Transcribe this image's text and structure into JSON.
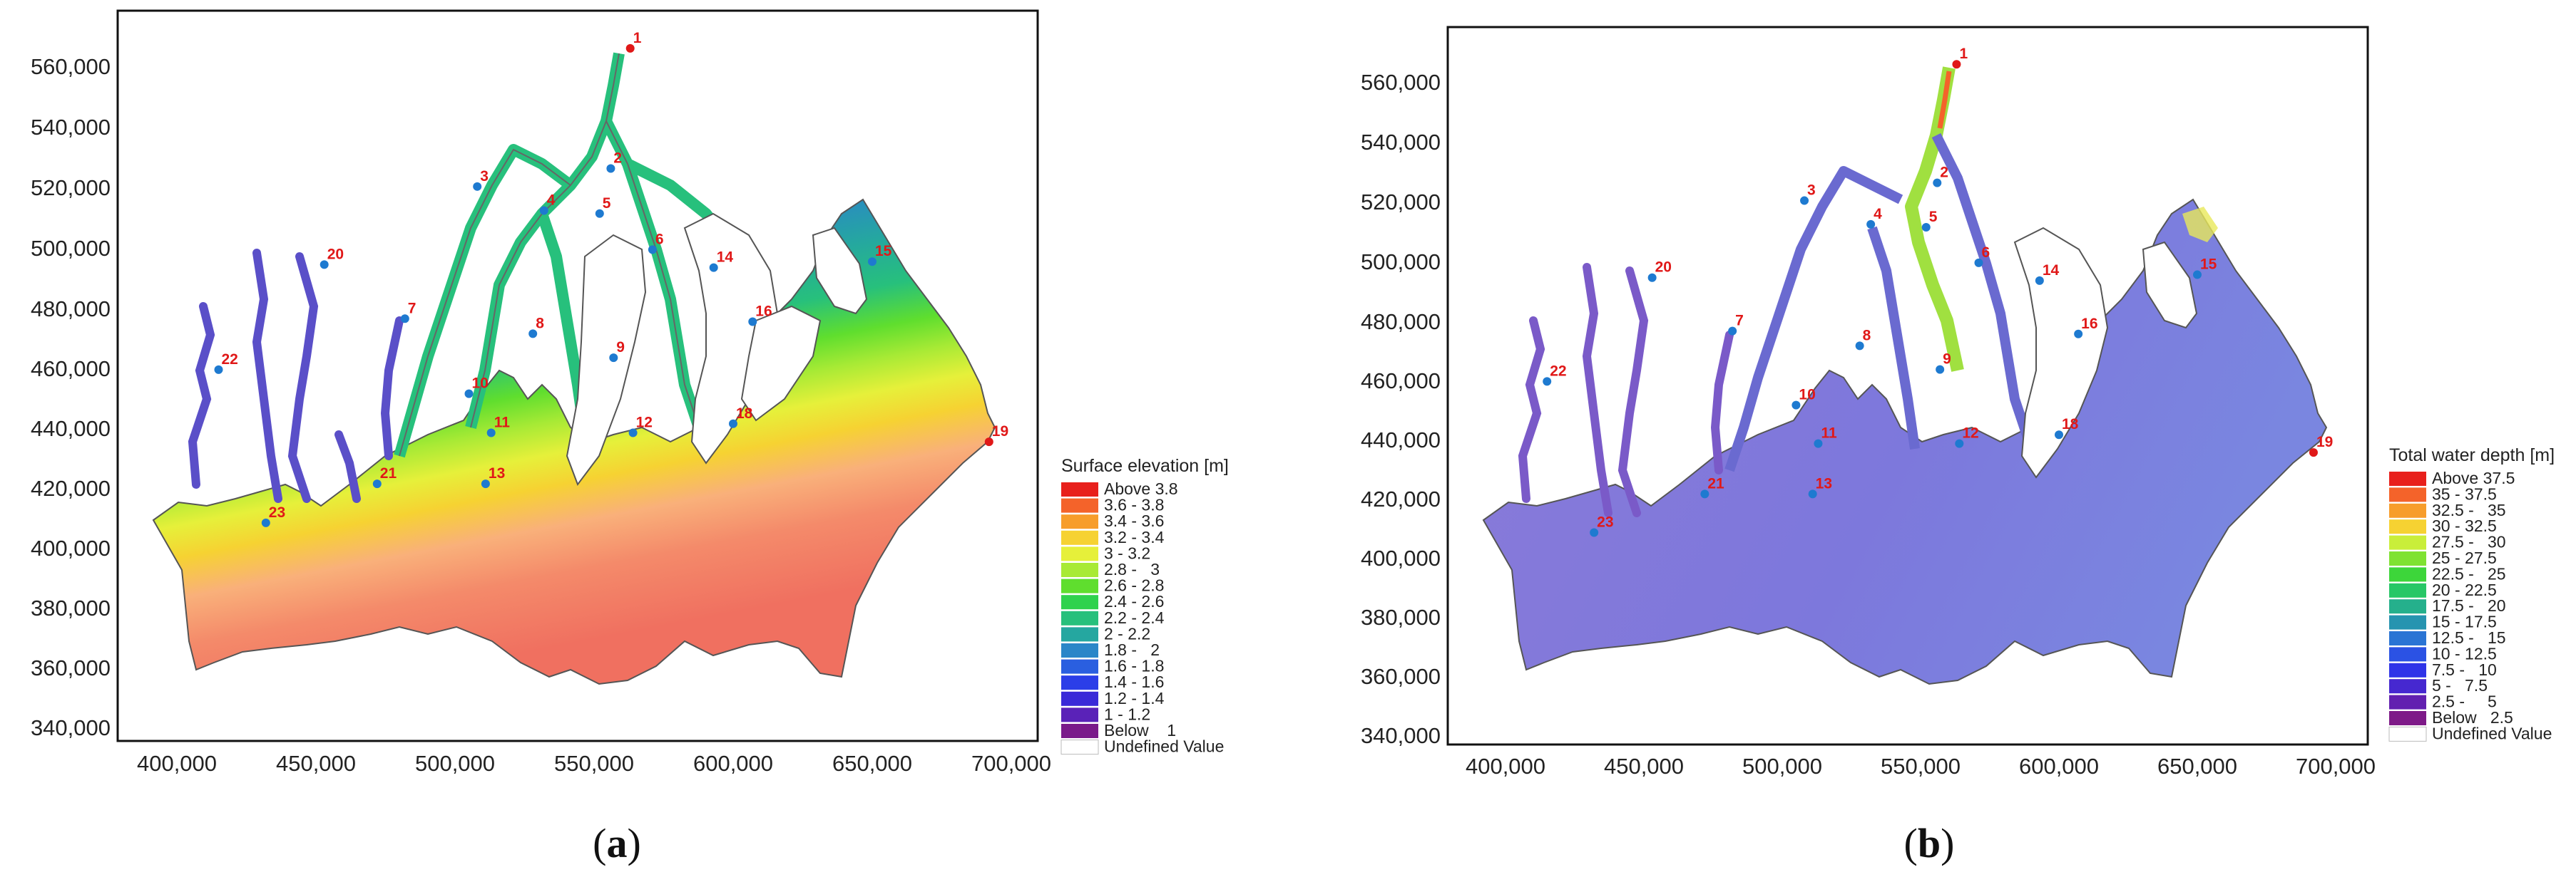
{
  "panels": [
    {
      "id": "a",
      "caption": {
        "open": "(",
        "letter": "a",
        "close": ")"
      },
      "y_ticks": [
        "560,000",
        "540,000",
        "520,000",
        "500,000",
        "480,000",
        "460,000",
        "440,000",
        "420,000",
        "400,000",
        "380,000",
        "360,000",
        "340,000"
      ],
      "x_ticks": [
        "400,000",
        "450,000",
        "500,000",
        "550,000",
        "600,000",
        "650,000",
        "700,000"
      ],
      "legend": {
        "title": "Surface elevation [m]",
        "items": [
          {
            "label": "Above 3.8",
            "color": "#e8201c"
          },
          {
            "label": "3.6 - 3.8",
            "color": "#f4632a"
          },
          {
            "label": "3.4 - 3.6",
            "color": "#f79d2b"
          },
          {
            "label": "3.2 - 3.4",
            "color": "#f6d232"
          },
          {
            "label": "3 - 3.2",
            "color": "#e6f03a"
          },
          {
            "label": "2.8 -   3",
            "color": "#a8ea35"
          },
          {
            "label": "2.6 - 2.8",
            "color": "#5fde2e"
          },
          {
            "label": "2.4 - 2.6",
            "color": "#2fd24d"
          },
          {
            "label": "2.2 - 2.4",
            "color": "#27c07c"
          },
          {
            "label": "2 - 2.2",
            "color": "#25a7a0"
          },
          {
            "label": "1.8 -   2",
            "color": "#2a86c8"
          },
          {
            "label": "1.6 - 1.8",
            "color": "#2a5fe0"
          },
          {
            "label": "1.4 - 1.6",
            "color": "#2b3ee8"
          },
          {
            "label": "1.2 - 1.4",
            "color": "#3a2ad8"
          },
          {
            "label": "1 - 1.2",
            "color": "#5a22b8"
          },
          {
            "label": "Below    1",
            "color": "#7a1a8a"
          },
          {
            "label": "Undefined Value",
            "color": "#ffffff"
          }
        ]
      },
      "stations": [
        {
          "label": "1",
          "x": 563000,
          "y": 565000,
          "red": true
        },
        {
          "label": "2",
          "x": 556000,
          "y": 525000
        },
        {
          "label": "3",
          "x": 508000,
          "y": 519000
        },
        {
          "label": "4",
          "x": 532000,
          "y": 511000
        },
        {
          "label": "5",
          "x": 552000,
          "y": 510000
        },
        {
          "label": "6",
          "x": 571000,
          "y": 498000
        },
        {
          "label": "7",
          "x": 482000,
          "y": 475000
        },
        {
          "label": "8",
          "x": 528000,
          "y": 470000
        },
        {
          "label": "9",
          "x": 557000,
          "y": 462000
        },
        {
          "label": "10",
          "x": 505000,
          "y": 450000
        },
        {
          "label": "11",
          "x": 513000,
          "y": 437000
        },
        {
          "label": "12",
          "x": 564000,
          "y": 437000
        },
        {
          "label": "13",
          "x": 511000,
          "y": 420000
        },
        {
          "label": "14",
          "x": 593000,
          "y": 492000
        },
        {
          "label": "15",
          "x": 650000,
          "y": 494000
        },
        {
          "label": "16",
          "x": 607000,
          "y": 474000
        },
        {
          "label": "18",
          "x": 600000,
          "y": 440000
        },
        {
          "label": "19",
          "x": 692000,
          "y": 434000,
          "red": true
        },
        {
          "label": "20",
          "x": 453000,
          "y": 493000
        },
        {
          "label": "21",
          "x": 472000,
          "y": 420000
        },
        {
          "label": "22",
          "x": 415000,
          "y": 458000
        },
        {
          "label": "23",
          "x": 432000,
          "y": 407000
        }
      ]
    },
    {
      "id": "b",
      "caption": {
        "open": "(",
        "letter": "b",
        "close": ")"
      },
      "y_ticks": [
        "560,000",
        "540,000",
        "520,000",
        "500,000",
        "480,000",
        "460,000",
        "440,000",
        "420,000",
        "400,000",
        "380,000",
        "360,000",
        "340,000"
      ],
      "x_ticks": [
        "400,000",
        "450,000",
        "500,000",
        "550,000",
        "600,000",
        "650,000",
        "700,000"
      ],
      "legend": {
        "title": "Total water depth [m]",
        "items": [
          {
            "label": "Above 37.5",
            "color": "#e8201c"
          },
          {
            "label": "35 - 37.5",
            "color": "#f4632a"
          },
          {
            "label": "32.5 -   35",
            "color": "#f79d2b"
          },
          {
            "label": "30 - 32.5",
            "color": "#f6d232"
          },
          {
            "label": "27.5 -   30",
            "color": "#c9ee3a"
          },
          {
            "label": "25 - 27.5",
            "color": "#7fe232"
          },
          {
            "label": "22.5 -   25",
            "color": "#3dd63a"
          },
          {
            "label": "20 - 22.5",
            "color": "#27c766"
          },
          {
            "label": "17.5 -   20",
            "color": "#25b08c"
          },
          {
            "label": "15 - 17.5",
            "color": "#2694b0"
          },
          {
            "label": "12.5 -   15",
            "color": "#2a74d4"
          },
          {
            "label": "10 - 12.5",
            "color": "#2b52e4"
          },
          {
            "label": "7.5 -   10",
            "color": "#2f34e8"
          },
          {
            "label": "5 -   7.5",
            "color": "#4628d0"
          },
          {
            "label": "2.5 -     5",
            "color": "#6220b0"
          },
          {
            "label": "Below   2.5",
            "color": "#7e1a88"
          },
          {
            "label": "Undefined Value",
            "color": "#ffffff"
          }
        ]
      },
      "stations": [
        {
          "label": "1",
          "x": 563000,
          "y": 565000,
          "red": true
        },
        {
          "label": "2",
          "x": 556000,
          "y": 525000
        },
        {
          "label": "3",
          "x": 508000,
          "y": 519000
        },
        {
          "label": "4",
          "x": 532000,
          "y": 511000
        },
        {
          "label": "5",
          "x": 552000,
          "y": 510000
        },
        {
          "label": "6",
          "x": 571000,
          "y": 498000
        },
        {
          "label": "7",
          "x": 482000,
          "y": 475000
        },
        {
          "label": "8",
          "x": 528000,
          "y": 470000
        },
        {
          "label": "9",
          "x": 557000,
          "y": 462000
        },
        {
          "label": "10",
          "x": 505000,
          "y": 450000
        },
        {
          "label": "11",
          "x": 513000,
          "y": 437000
        },
        {
          "label": "12",
          "x": 564000,
          "y": 437000
        },
        {
          "label": "13",
          "x": 511000,
          "y": 420000
        },
        {
          "label": "14",
          "x": 593000,
          "y": 492000
        },
        {
          "label": "15",
          "x": 650000,
          "y": 494000
        },
        {
          "label": "16",
          "x": 607000,
          "y": 474000
        },
        {
          "label": "18",
          "x": 600000,
          "y": 440000
        },
        {
          "label": "19",
          "x": 692000,
          "y": 434000,
          "red": true
        },
        {
          "label": "20",
          "x": 453000,
          "y": 493000
        },
        {
          "label": "21",
          "x": 472000,
          "y": 420000
        },
        {
          "label": "22",
          "x": 415000,
          "y": 458000
        },
        {
          "label": "23",
          "x": 432000,
          "y": 407000
        }
      ]
    }
  ]
}
